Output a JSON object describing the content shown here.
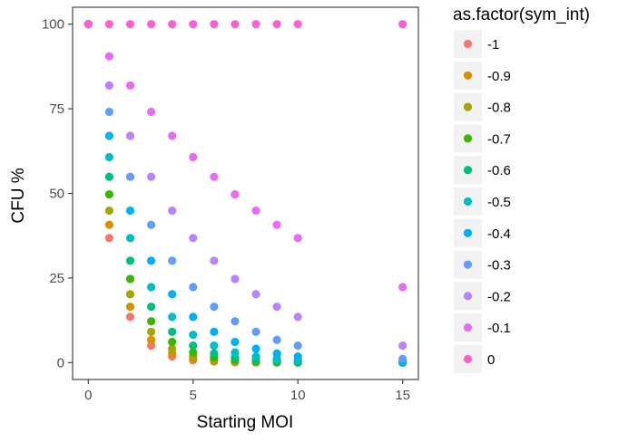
{
  "chart_data": {
    "type": "scatter",
    "title": "",
    "xlabel": "Starting MOI",
    "ylabel": "CFU %",
    "xlim": [
      -0.75,
      15.75
    ],
    "ylim": [
      -5,
      105
    ],
    "x_ticks": [
      0,
      5,
      10,
      15
    ],
    "y_ticks": [
      0,
      25,
      50,
      75,
      100
    ],
    "grid": false,
    "legend": {
      "title": "as.factor(sym_int)",
      "placement": "right"
    },
    "x": [
      0,
      1,
      2,
      3,
      4,
      5,
      6,
      7,
      8,
      9,
      10,
      15
    ],
    "series": [
      {
        "name": "-1",
        "color": "#F8766D",
        "values": [
          100,
          36.8,
          13.5,
          5,
          1.8,
          0.7,
          0.3,
          0.1,
          0,
          0,
          0,
          0
        ]
      },
      {
        "name": "-0.9",
        "color": "#D89000",
        "values": [
          100,
          40.7,
          16.5,
          6.7,
          2.7,
          1.1,
          0.5,
          0.2,
          0.1,
          0,
          0,
          0
        ]
      },
      {
        "name": "-0.8",
        "color": "#A3A500",
        "values": [
          100,
          44.9,
          20.2,
          9.1,
          4.1,
          1.8,
          0.8,
          0.4,
          0.2,
          0.1,
          0,
          0
        ]
      },
      {
        "name": "-0.7",
        "color": "#39B600",
        "values": [
          100,
          49.7,
          24.7,
          12.2,
          6.1,
          3,
          1.5,
          0.7,
          0.4,
          0.2,
          0.1,
          0
        ]
      },
      {
        "name": "-0.6",
        "color": "#00BF7D",
        "values": [
          100,
          54.9,
          30.1,
          16.5,
          9.1,
          5,
          2.7,
          1.5,
          0.8,
          0.4,
          0.2,
          0
        ]
      },
      {
        "name": "-0.5",
        "color": "#00BFC4",
        "values": [
          100,
          60.7,
          36.8,
          22.3,
          13.5,
          8.2,
          5,
          3,
          1.8,
          1.1,
          0.7,
          0.1
        ]
      },
      {
        "name": "-0.4",
        "color": "#00B0F6",
        "values": [
          100,
          67,
          44.9,
          30.1,
          20.2,
          13.5,
          9.1,
          6.1,
          4.1,
          2.7,
          1.8,
          0.2
        ]
      },
      {
        "name": "-0.3",
        "color": "#619CFF",
        "values": [
          100,
          74.1,
          54.9,
          40.7,
          30.1,
          22.3,
          16.5,
          12.2,
          9.1,
          6.7,
          5,
          1.1
        ]
      },
      {
        "name": "-0.2",
        "color": "#B983FF",
        "values": [
          100,
          81.9,
          67,
          54.9,
          44.9,
          36.8,
          30.1,
          24.7,
          20.2,
          16.5,
          13.5,
          5
        ]
      },
      {
        "name": "-0.1",
        "color": "#E76BF3",
        "values": [
          100,
          90.5,
          81.9,
          74.1,
          67,
          60.7,
          54.9,
          49.7,
          44.9,
          40.7,
          36.8,
          22.3
        ]
      },
      {
        "name": "0",
        "color": "#FD61D1",
        "values": [
          100,
          100,
          100,
          100,
          100,
          100,
          100,
          100,
          100,
          100,
          100,
          100
        ]
      }
    ]
  }
}
